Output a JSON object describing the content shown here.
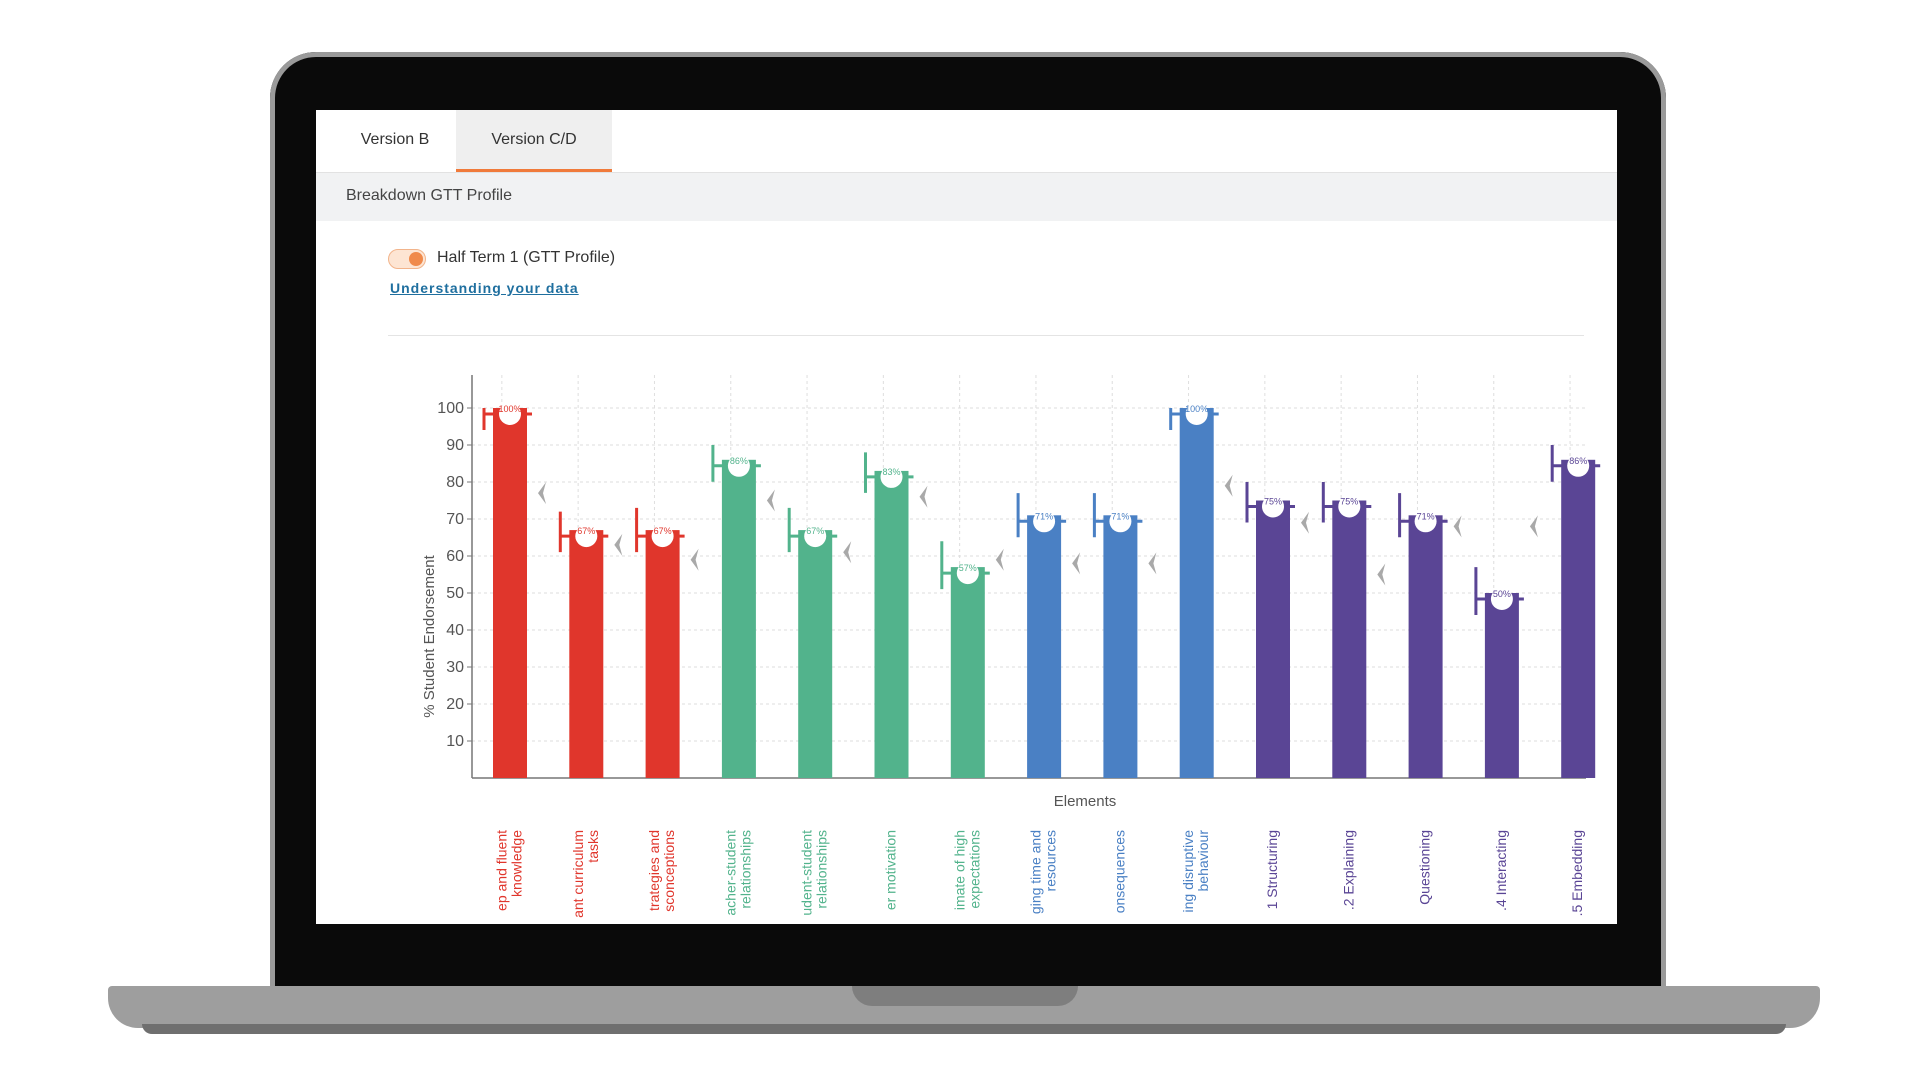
{
  "tabs": [
    {
      "label": "Version B"
    },
    {
      "label": "Version C/D"
    }
  ],
  "section_title": "Breakdown GTT Profile",
  "toggle_label": "Half Term 1 (GTT Profile)",
  "link_text": "Understanding your data",
  "colors": {
    "accent": "#f07a3a",
    "red": "#e0362c",
    "green": "#52b38c",
    "blue": "#4a80c4",
    "purple": "#5a4595",
    "arrow": "#a9a9a9"
  },
  "chart_data": {
    "type": "bar",
    "xlabel": "Elements",
    "ylabel": "% Student Endorsement",
    "ylim": [
      0,
      110
    ],
    "yticks": [
      10,
      20,
      30,
      40,
      50,
      60,
      70,
      80,
      90,
      100
    ],
    "grid": true,
    "categories": [
      {
        "label": [
          "ep and fluent",
          "knowledge"
        ],
        "value": 100,
        "value_label": "100%",
        "color": "red",
        "bracket": 100,
        "arrow": 77
      },
      {
        "label": [
          "ant curriculum",
          "tasks"
        ],
        "value": 67,
        "value_label": "67%",
        "color": "red",
        "bracket": 72,
        "arrow": 63
      },
      {
        "label": [
          "trategies and",
          "sconceptions"
        ],
        "value": 67,
        "value_label": "67%",
        "color": "red",
        "bracket": 73,
        "arrow": 59
      },
      {
        "label": [
          "acher-student",
          "relationships"
        ],
        "value": 86,
        "value_label": "86%",
        "color": "green",
        "bracket": 90,
        "arrow": 75
      },
      {
        "label": [
          "udent-student",
          "relationships"
        ],
        "value": 67,
        "value_label": "67%",
        "color": "green",
        "bracket": 73,
        "arrow": 61
      },
      {
        "label": [
          "er motivation"
        ],
        "value": 83,
        "value_label": "83%",
        "color": "green",
        "bracket": 88,
        "arrow": 76
      },
      {
        "label": [
          "imate of high",
          "expectations"
        ],
        "value": 57,
        "value_label": "57%",
        "color": "green",
        "bracket": 64,
        "arrow": 59
      },
      {
        "label": [
          "ging time and",
          "resources"
        ],
        "value": 71,
        "value_label": "71%",
        "color": "blue",
        "bracket": 77,
        "arrow": 58
      },
      {
        "label": [
          "onsequences"
        ],
        "value": 71,
        "value_label": "71%",
        "color": "blue",
        "bracket": 77,
        "arrow": 58
      },
      {
        "label": [
          "ing disruptive",
          "behaviour"
        ],
        "value": 100,
        "value_label": "100%",
        "color": "blue",
        "bracket": 100,
        "arrow": 79
      },
      {
        "label": [
          "1 Structuring"
        ],
        "value": 75,
        "value_label": "75%",
        "color": "purple",
        "bracket": 80,
        "arrow": 69
      },
      {
        "label": [
          ".2 Explaining"
        ],
        "value": 75,
        "value_label": "75%",
        "color": "purple",
        "bracket": 80,
        "arrow": 55
      },
      {
        "label": [
          "Questioning"
        ],
        "value": 71,
        "value_label": "71%",
        "color": "purple",
        "bracket": 77,
        "arrow": 68
      },
      {
        "label": [
          ".4 Interacting"
        ],
        "value": 50,
        "value_label": "50%",
        "color": "purple",
        "bracket": 57,
        "arrow": 68
      },
      {
        "label": [
          ".5 Embedding"
        ],
        "value": 86,
        "value_label": "86%",
        "color": "purple",
        "bracket": 90,
        "arrow": null
      }
    ]
  }
}
